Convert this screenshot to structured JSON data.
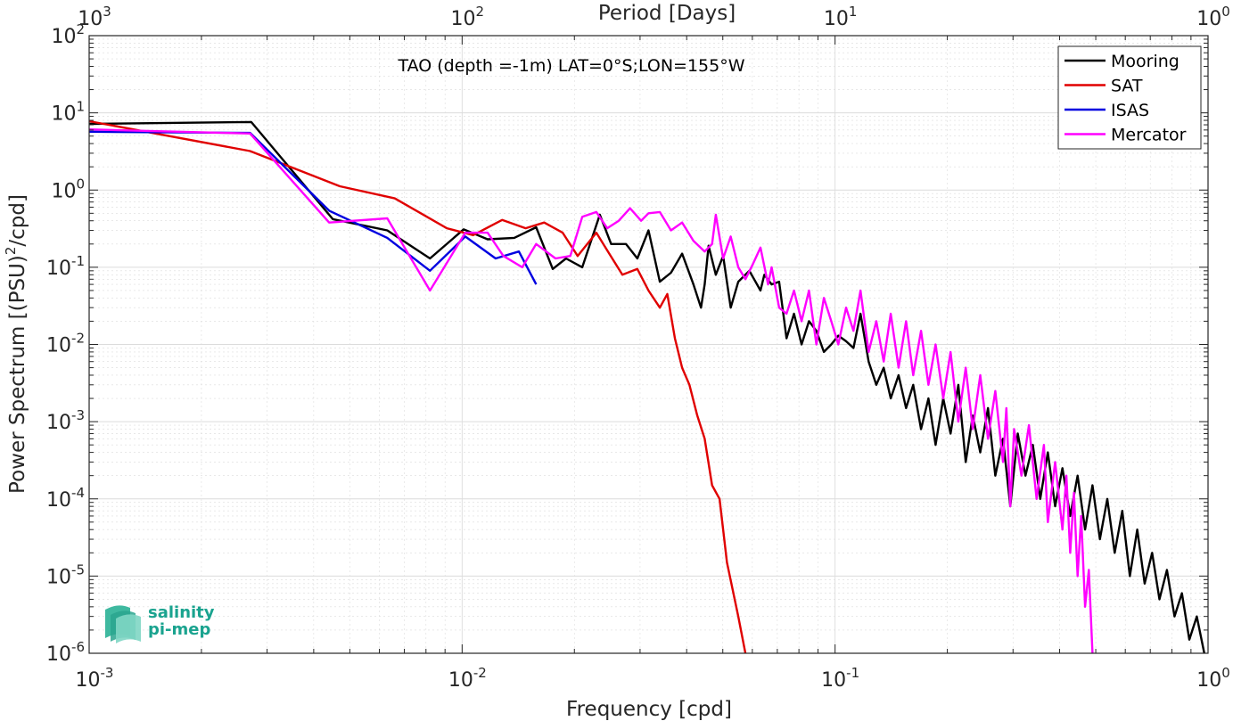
{
  "chart_data": {
    "type": "line",
    "title": "TAO (depth =-1m) LAT=0°S;LON=155°W",
    "xlabel": "Frequency [cpd]",
    "ylabel_main": "Power Spectrum [(PSU)",
    "ylabel_exp": "2",
    "ylabel_tail": "/cpd]",
    "top_xlabel": "Period [Days]",
    "xscale": "log",
    "yscale": "log",
    "xlim": [
      0.001,
      1
    ],
    "ylim": [
      1e-06,
      100
    ],
    "grid": true,
    "legend_position": "top-right",
    "x_ticks": [
      {
        "value": 0.001,
        "base": "10",
        "exp": "-3"
      },
      {
        "value": 0.01,
        "base": "10",
        "exp": "-2"
      },
      {
        "value": 0.1,
        "base": "10",
        "exp": "-1"
      },
      {
        "value": 1,
        "base": "10",
        "exp": "0"
      }
    ],
    "y_ticks": [
      {
        "value": 1e-06,
        "base": "10",
        "exp": "-6"
      },
      {
        "value": 1e-05,
        "base": "10",
        "exp": "-5"
      },
      {
        "value": 0.0001,
        "base": "10",
        "exp": "-4"
      },
      {
        "value": 0.001,
        "base": "10",
        "exp": "-3"
      },
      {
        "value": 0.01,
        "base": "10",
        "exp": "-2"
      },
      {
        "value": 0.1,
        "base": "10",
        "exp": "-1"
      },
      {
        "value": 1,
        "base": "10",
        "exp": "0"
      },
      {
        "value": 10,
        "base": "10",
        "exp": "1"
      },
      {
        "value": 100,
        "base": "10",
        "exp": "2"
      }
    ],
    "top_ticks": [
      {
        "value": 0.001,
        "base": "10",
        "exp": "3"
      },
      {
        "value": 0.01,
        "base": "10",
        "exp": "2"
      },
      {
        "value": 0.1,
        "base": "10",
        "exp": "1"
      },
      {
        "value": 1,
        "base": "10",
        "exp": "0"
      }
    ],
    "series": [
      {
        "name": "Mooring",
        "color": "#000000",
        "points": [
          [
            0.001,
            7.2
          ],
          [
            0.00272,
            7.6
          ],
          [
            0.0045,
            0.42
          ],
          [
            0.0063,
            0.3
          ],
          [
            0.0082,
            0.13
          ],
          [
            0.0101,
            0.31
          ],
          [
            0.0117,
            0.23
          ],
          [
            0.0138,
            0.24
          ],
          [
            0.0158,
            0.33
          ],
          [
            0.0175,
            0.095
          ],
          [
            0.019,
            0.13
          ],
          [
            0.021,
            0.1
          ],
          [
            0.0234,
            0.48
          ],
          [
            0.0251,
            0.2
          ],
          [
            0.0275,
            0.2
          ],
          [
            0.0295,
            0.13
          ],
          [
            0.0316,
            0.3
          ],
          [
            0.0339,
            0.065
          ],
          [
            0.0363,
            0.085
          ],
          [
            0.0389,
            0.15
          ],
          [
            0.0417,
            0.06
          ],
          [
            0.0437,
            0.03
          ],
          [
            0.0447,
            0.06
          ],
          [
            0.0458,
            0.19
          ],
          [
            0.0479,
            0.08
          ],
          [
            0.0501,
            0.14
          ],
          [
            0.0525,
            0.03
          ],
          [
            0.055,
            0.065
          ],
          [
            0.0589,
            0.09
          ],
          [
            0.0631,
            0.05
          ],
          [
            0.0646,
            0.08
          ],
          [
            0.0676,
            0.06
          ],
          [
            0.0708,
            0.065
          ],
          [
            0.0741,
            0.012
          ],
          [
            0.0776,
            0.025
          ],
          [
            0.0813,
            0.01
          ],
          [
            0.0851,
            0.02
          ],
          [
            0.0891,
            0.015
          ],
          [
            0.0933,
            0.008
          ],
          [
            0.0977,
            0.01
          ],
          [
            0.102,
            0.013
          ],
          [
            0.107,
            0.011
          ],
          [
            0.112,
            0.009
          ],
          [
            0.117,
            0.025
          ],
          [
            0.123,
            0.006
          ],
          [
            0.129,
            0.003
          ],
          [
            0.135,
            0.005
          ],
          [
            0.141,
            0.002
          ],
          [
            0.148,
            0.004
          ],
          [
            0.155,
            0.0015
          ],
          [
            0.162,
            0.003
          ],
          [
            0.17,
            0.0008
          ],
          [
            0.178,
            0.002
          ],
          [
            0.186,
            0.0005
          ],
          [
            0.195,
            0.002
          ],
          [
            0.204,
            0.0007
          ],
          [
            0.214,
            0.003
          ],
          [
            0.224,
            0.0003
          ],
          [
            0.234,
            0.0012
          ],
          [
            0.245,
            0.0004
          ],
          [
            0.257,
            0.0015
          ],
          [
            0.269,
            0.0002
          ],
          [
            0.282,
            0.0006
          ],
          [
            0.295,
            8e-05
          ],
          [
            0.309,
            0.0007
          ],
          [
            0.324,
            0.0002
          ],
          [
            0.339,
            0.0005
          ],
          [
            0.355,
            0.0001
          ],
          [
            0.372,
            0.0004
          ],
          [
            0.389,
            8e-05
          ],
          [
            0.407,
            0.00025
          ],
          [
            0.427,
            6e-05
          ],
          [
            0.447,
            0.0002
          ],
          [
            0.468,
            4e-05
          ],
          [
            0.49,
            0.00015
          ],
          [
            0.513,
            3e-05
          ],
          [
            0.537,
            0.0001
          ],
          [
            0.562,
            2e-05
          ],
          [
            0.589,
            7e-05
          ],
          [
            0.617,
            1e-05
          ],
          [
            0.646,
            4e-05
          ],
          [
            0.676,
            8e-06
          ],
          [
            0.708,
            2e-05
          ],
          [
            0.741,
            5e-06
          ],
          [
            0.776,
            1.2e-05
          ],
          [
            0.813,
            3e-06
          ],
          [
            0.851,
            6e-06
          ],
          [
            0.891,
            1.5e-06
          ],
          [
            0.933,
            3e-06
          ],
          [
            0.977,
            1e-06
          ]
        ]
      },
      {
        "name": "SAT",
        "color": "#e00000",
        "points": [
          [
            0.001,
            7.8
          ],
          [
            0.0027,
            3.2
          ],
          [
            0.0047,
            1.12
          ],
          [
            0.0066,
            0.78
          ],
          [
            0.0091,
            0.32
          ],
          [
            0.0107,
            0.26
          ],
          [
            0.0128,
            0.41
          ],
          [
            0.0148,
            0.32
          ],
          [
            0.0166,
            0.38
          ],
          [
            0.0186,
            0.28
          ],
          [
            0.0204,
            0.14
          ],
          [
            0.0229,
            0.28
          ],
          [
            0.0246,
            0.16
          ],
          [
            0.0269,
            0.08
          ],
          [
            0.0295,
            0.095
          ],
          [
            0.0316,
            0.05
          ],
          [
            0.0339,
            0.03
          ],
          [
            0.0355,
            0.045
          ],
          [
            0.0372,
            0.012
          ],
          [
            0.0389,
            0.005
          ],
          [
            0.0407,
            0.003
          ],
          [
            0.0427,
            0.0012
          ],
          [
            0.0447,
            0.0006
          ],
          [
            0.0468,
            0.00015
          ],
          [
            0.049,
            0.0001
          ],
          [
            0.0513,
            1.5e-05
          ],
          [
            0.055,
            3e-06
          ],
          [
            0.0575,
            1e-06
          ]
        ]
      },
      {
        "name": "ISAS",
        "color": "#0000e0",
        "points": [
          [
            0.001,
            5.7
          ],
          [
            0.0027,
            5.5
          ],
          [
            0.0044,
            0.54
          ],
          [
            0.0063,
            0.24
          ],
          [
            0.0082,
            0.09
          ],
          [
            0.0102,
            0.25
          ],
          [
            0.0123,
            0.13
          ],
          [
            0.0142,
            0.16
          ],
          [
            0.0158,
            0.06
          ]
        ]
      },
      {
        "name": "Mercator",
        "color": "#ff00ff",
        "points": [
          [
            0.001,
            6.1
          ],
          [
            0.0027,
            5.4
          ],
          [
            0.0044,
            0.38
          ],
          [
            0.0063,
            0.43
          ],
          [
            0.0082,
            0.05
          ],
          [
            0.0102,
            0.28
          ],
          [
            0.0117,
            0.28
          ],
          [
            0.0129,
            0.14
          ],
          [
            0.0145,
            0.1
          ],
          [
            0.0158,
            0.2
          ],
          [
            0.0178,
            0.13
          ],
          [
            0.0195,
            0.14
          ],
          [
            0.021,
            0.45
          ],
          [
            0.0229,
            0.52
          ],
          [
            0.0245,
            0.32
          ],
          [
            0.0263,
            0.4
          ],
          [
            0.0282,
            0.58
          ],
          [
            0.0302,
            0.4
          ],
          [
            0.0316,
            0.5
          ],
          [
            0.0339,
            0.52
          ],
          [
            0.0363,
            0.3
          ],
          [
            0.0389,
            0.38
          ],
          [
            0.0417,
            0.22
          ],
          [
            0.0447,
            0.16
          ],
          [
            0.0468,
            0.2
          ],
          [
            0.0479,
            0.48
          ],
          [
            0.0501,
            0.13
          ],
          [
            0.0525,
            0.25
          ],
          [
            0.055,
            0.1
          ],
          [
            0.0575,
            0.07
          ],
          [
            0.0602,
            0.11
          ],
          [
            0.0631,
            0.18
          ],
          [
            0.0661,
            0.06
          ],
          [
            0.0676,
            0.1
          ],
          [
            0.0708,
            0.03
          ],
          [
            0.0741,
            0.025
          ],
          [
            0.0776,
            0.05
          ],
          [
            0.0813,
            0.02
          ],
          [
            0.0851,
            0.05
          ],
          [
            0.0891,
            0.01
          ],
          [
            0.0933,
            0.04
          ],
          [
            0.0977,
            0.02
          ],
          [
            0.102,
            0.01
          ],
          [
            0.107,
            0.03
          ],
          [
            0.112,
            0.015
          ],
          [
            0.117,
            0.05
          ],
          [
            0.123,
            0.008
          ],
          [
            0.129,
            0.02
          ],
          [
            0.135,
            0.006
          ],
          [
            0.141,
            0.025
          ],
          [
            0.148,
            0.005
          ],
          [
            0.155,
            0.02
          ],
          [
            0.162,
            0.004
          ],
          [
            0.17,
            0.015
          ],
          [
            0.178,
            0.003
          ],
          [
            0.186,
            0.01
          ],
          [
            0.195,
            0.002
          ],
          [
            0.204,
            0.008
          ],
          [
            0.214,
            0.001
          ],
          [
            0.224,
            0.005
          ],
          [
            0.234,
            0.0008
          ],
          [
            0.245,
            0.004
          ],
          [
            0.257,
            0.0006
          ],
          [
            0.269,
            0.0025
          ],
          [
            0.282,
            0.0003
          ],
          [
            0.288,
            0.0015
          ],
          [
            0.295,
            8e-05
          ],
          [
            0.302,
            0.0008
          ],
          [
            0.316,
            0.0002
          ],
          [
            0.331,
            0.0009
          ],
          [
            0.347,
            0.0001
          ],
          [
            0.363,
            0.0005
          ],
          [
            0.372,
            5e-05
          ],
          [
            0.389,
            0.0003
          ],
          [
            0.407,
            4e-05
          ],
          [
            0.417,
            0.0002
          ],
          [
            0.427,
            2e-05
          ],
          [
            0.437,
            0.00012
          ],
          [
            0.447,
            1e-05
          ],
          [
            0.457,
            6e-05
          ],
          [
            0.468,
            4e-06
          ],
          [
            0.479,
            1.2e-05
          ],
          [
            0.49,
            1e-06
          ]
        ]
      }
    ]
  },
  "logo": {
    "line1": "salinity",
    "line2": "pi-mep"
  },
  "colors": {
    "axis": "#262626",
    "grid": "#dcdcdc",
    "logo_teal": "#1aa38f"
  }
}
